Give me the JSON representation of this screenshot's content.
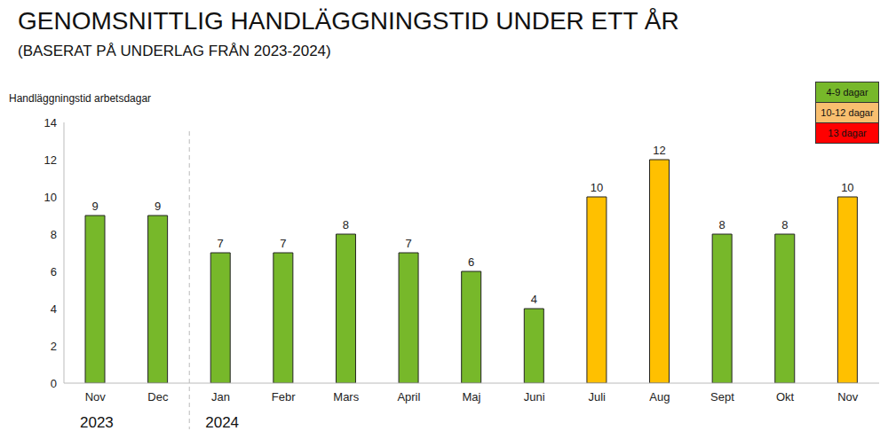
{
  "chart_data": {
    "type": "bar",
    "title": "GENOMSNITTLIG HANDLÄGGNINGSTID UNDER ETT ÅR",
    "subtitle": "(BASERAT PÅ UNDERLAG FRÅN 2023-2024)",
    "y_label": "Handläggningstid arbetsdagar",
    "categories": [
      "Nov",
      "Dec",
      "Jan",
      "Febr",
      "Mars",
      "April",
      "Maj",
      "Juni",
      "Juli",
      "Aug",
      "Sept",
      "Okt",
      "Nov"
    ],
    "values": [
      9,
      9,
      7,
      7,
      8,
      7,
      6,
      4,
      10,
      12,
      8,
      8,
      10
    ],
    "colors": [
      "#77b82a",
      "#77b82a",
      "#77b82a",
      "#77b82a",
      "#77b82a",
      "#77b82a",
      "#77b82a",
      "#77b82a",
      "#ffc000",
      "#ffc000",
      "#77b82a",
      "#77b82a",
      "#ffc000"
    ],
    "groups": [
      {
        "label": "2023",
        "size": 2
      },
      {
        "label": "2024",
        "size": 11
      }
    ],
    "color_key": [
      {
        "label": "4-9 dagar",
        "color": "#77b82a"
      },
      {
        "label": "10-12 dagar",
        "color": "#f9bf6f"
      },
      {
        "label": "13 dagar",
        "color": "#ff0000"
      }
    ],
    "legend": "top-right",
    "ylim": [
      0,
      14
    ],
    "yticks": [
      0,
      2,
      4,
      6,
      8,
      10,
      12,
      14
    ],
    "grid": false,
    "data_labels": true
  }
}
